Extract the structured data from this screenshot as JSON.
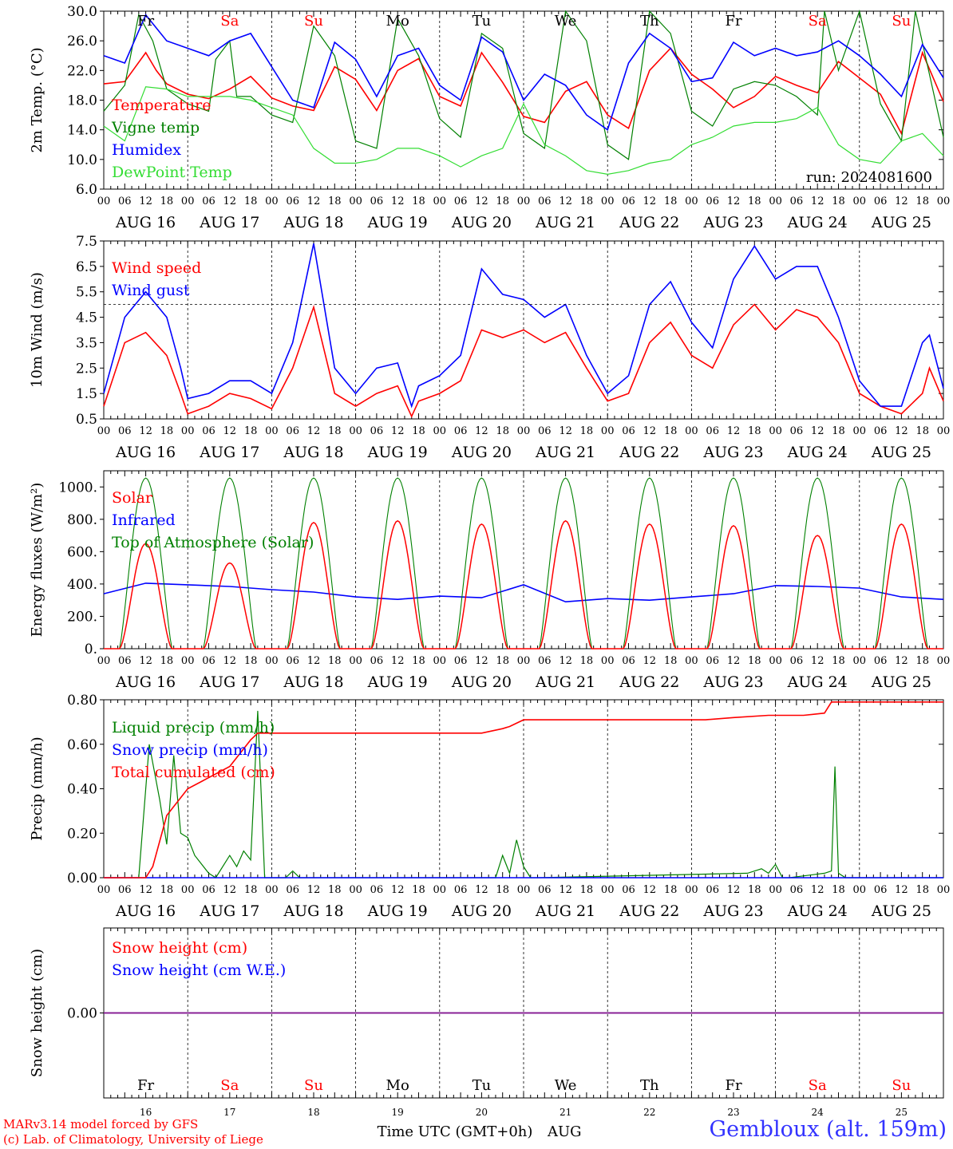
{
  "run_label": "run: 2024081600",
  "station": "Gembloux (alt. 159m)",
  "credits": [
    "MARv3.14 model forced by GFS",
    "(c) Lab. of Climatology, University of Liege"
  ],
  "time_axis_title": "Time UTC (GMT+0h)",
  "month_label": "AUG",
  "hour_ticks": [
    "00",
    "06",
    "12",
    "18"
  ],
  "dates": [
    "AUG 16",
    "AUG 17",
    "AUG 18",
    "AUG 19",
    "AUG 20",
    "AUG 21",
    "AUG 22",
    "AUG 23",
    "AUG 24",
    "AUG 25"
  ],
  "day_numbers": [
    "16",
    "17",
    "18",
    "19",
    "20",
    "21",
    "22",
    "23",
    "24",
    "25"
  ],
  "weekdays": [
    "Fr",
    "Sa",
    "Su",
    "Mo",
    "Tu",
    "We",
    "Th",
    "Fr",
    "Sa",
    "Su"
  ],
  "weekend_flags": [
    false,
    true,
    true,
    false,
    false,
    false,
    false,
    false,
    true,
    true
  ],
  "colors": {
    "red": "#ff0000",
    "green": "#008000",
    "blue": "#0000ff",
    "lightgreen": "#33dd33",
    "purple": "#8b1a8b"
  },
  "chart_data": [
    {
      "type": "line",
      "ylabel": "2m Temp. (°C)",
      "yticks": [
        "30.0",
        "26.0",
        "22.0",
        "18.0",
        "14.0",
        "10.0",
        "6.0"
      ],
      "ylim": [
        6,
        30
      ],
      "x_unit": "hours since AUG 16 00 UTC",
      "x_range": [
        0,
        240
      ],
      "series": [
        {
          "name": "Temperature",
          "color": "red",
          "x": [
            0,
            6,
            12,
            15,
            18,
            24,
            30,
            36,
            42,
            48,
            54,
            60,
            66,
            72,
            78,
            84,
            90,
            96,
            102,
            108,
            114,
            120,
            126,
            132,
            138,
            144,
            150,
            156,
            162,
            168,
            174,
            180,
            186,
            192,
            198,
            204,
            210,
            216,
            222,
            228,
            234,
            240
          ],
          "values": [
            20.2,
            20.5,
            24.4,
            22.0,
            20.2,
            18.8,
            18.2,
            19.5,
            21.2,
            18.3,
            17.2,
            16.6,
            22.5,
            20.8,
            16.6,
            22.0,
            23.6,
            18.5,
            17.2,
            24.4,
            20.4,
            15.8,
            15.0,
            19.2,
            20.5,
            16.0,
            14.2,
            22.0,
            25.0,
            21.5,
            19.5,
            17.0,
            18.5,
            21.2,
            20.0,
            19.0,
            23.2,
            21.0,
            18.8,
            13.5,
            24.4,
            17.8
          ]
        },
        {
          "name": "Vigne temp",
          "color": "green",
          "x": [
            0,
            6,
            10,
            14,
            18,
            24,
            30,
            32,
            36,
            38,
            42,
            48,
            54,
            60,
            66,
            72,
            78,
            84,
            90,
            96,
            102,
            108,
            114,
            120,
            126,
            132,
            138,
            144,
            150,
            156,
            162,
            168,
            174,
            180,
            186,
            192,
            198,
            204,
            206,
            210,
            216,
            222,
            228,
            232,
            240
          ],
          "values": [
            16.5,
            20.0,
            29.5,
            26.0,
            19.5,
            17.5,
            16.5,
            23.5,
            26.0,
            18.5,
            18.5,
            16.0,
            15.0,
            28.0,
            24.0,
            12.5,
            11.5,
            29.0,
            24.0,
            15.5,
            13.0,
            27.0,
            25.0,
            13.5,
            11.5,
            30.0,
            26.0,
            12.0,
            10.0,
            30.0,
            27.0,
            16.5,
            14.5,
            19.5,
            20.5,
            20.0,
            18.5,
            16.0,
            30.0,
            22.0,
            30.0,
            17.5,
            12.5,
            30.0,
            13.0
          ]
        },
        {
          "name": "Humidex",
          "color": "blue",
          "x": [
            0,
            6,
            12,
            18,
            24,
            30,
            36,
            42,
            48,
            54,
            60,
            66,
            72,
            78,
            84,
            90,
            96,
            102,
            108,
            114,
            120,
            126,
            132,
            138,
            144,
            150,
            156,
            162,
            168,
            174,
            180,
            186,
            192,
            198,
            204,
            210,
            216,
            222,
            228,
            234,
            240
          ],
          "values": [
            24.0,
            23.0,
            29.5,
            26.0,
            25.0,
            24.0,
            26.0,
            27.0,
            22.5,
            18.0,
            17.0,
            25.8,
            23.5,
            18.5,
            24.0,
            25.0,
            20.0,
            18.0,
            26.5,
            24.5,
            18.0,
            21.5,
            20.0,
            16.0,
            14.0,
            23.0,
            27.0,
            25.0,
            20.5,
            21.0,
            25.8,
            24.0,
            25.0,
            24.0,
            24.5,
            26.0,
            24.0,
            21.5,
            18.5,
            25.5,
            21.0
          ]
        },
        {
          "name": "DewPoint Temp",
          "color": "lightgreen",
          "x": [
            0,
            6,
            12,
            18,
            24,
            30,
            36,
            42,
            48,
            54,
            60,
            66,
            72,
            78,
            84,
            90,
            96,
            102,
            108,
            114,
            120,
            126,
            132,
            138,
            144,
            150,
            156,
            162,
            168,
            174,
            180,
            186,
            192,
            198,
            204,
            210,
            216,
            222,
            228,
            234,
            240
          ],
          "values": [
            14.5,
            12.5,
            19.8,
            19.5,
            18.5,
            18.5,
            18.5,
            18.0,
            17.0,
            16.0,
            11.5,
            9.5,
            9.5,
            10.0,
            11.5,
            11.5,
            10.5,
            9.0,
            10.5,
            11.5,
            17.5,
            12.0,
            10.5,
            8.5,
            8.0,
            8.5,
            9.5,
            10.0,
            12.0,
            13.0,
            14.5,
            15.0,
            15.0,
            15.5,
            17.0,
            12.0,
            10.0,
            9.5,
            12.5,
            13.5,
            10.5
          ]
        }
      ]
    },
    {
      "type": "line",
      "ylabel": "10m Wind (m/s)",
      "yticks": [
        "7.5",
        "6.5",
        "5.5",
        "4.5",
        "3.5",
        "2.5",
        "1.5",
        "0.5"
      ],
      "ylim": [
        0.5,
        7.5
      ],
      "reference_line": 5.0,
      "series": [
        {
          "name": "Wind speed",
          "color": "red",
          "x": [
            0,
            6,
            12,
            18,
            22,
            24,
            30,
            36,
            42,
            48,
            54,
            60,
            66,
            72,
            78,
            84,
            88,
            90,
            96,
            102,
            108,
            114,
            120,
            126,
            132,
            138,
            144,
            150,
            156,
            162,
            168,
            174,
            180,
            186,
            192,
            198,
            204,
            210,
            216,
            222,
            228,
            234,
            236,
            240
          ],
          "values": [
            1.0,
            3.5,
            3.9,
            3.0,
            1.5,
            0.7,
            1.0,
            1.5,
            1.3,
            0.9,
            2.5,
            4.9,
            1.5,
            1.0,
            1.5,
            1.8,
            0.6,
            1.2,
            1.5,
            2.0,
            4.0,
            3.7,
            4.0,
            3.5,
            3.9,
            2.5,
            1.2,
            1.5,
            3.5,
            4.3,
            3.0,
            2.5,
            4.2,
            5.0,
            4.0,
            4.8,
            4.5,
            3.5,
            1.5,
            1.0,
            0.7,
            1.5,
            2.5,
            1.2
          ]
        },
        {
          "name": "Wind gust",
          "color": "blue",
          "x": [
            0,
            6,
            12,
            18,
            22,
            24,
            30,
            36,
            42,
            48,
            54,
            60,
            66,
            72,
            78,
            84,
            88,
            90,
            96,
            102,
            108,
            114,
            120,
            126,
            132,
            138,
            144,
            150,
            156,
            162,
            168,
            174,
            180,
            186,
            192,
            198,
            204,
            210,
            216,
            222,
            228,
            234,
            236,
            240
          ],
          "values": [
            1.5,
            4.5,
            5.5,
            4.5,
            2.5,
            1.3,
            1.5,
            2.0,
            2.0,
            1.5,
            3.5,
            7.4,
            2.5,
            1.5,
            2.5,
            2.7,
            1.0,
            1.8,
            2.2,
            3.0,
            6.4,
            5.4,
            5.2,
            4.5,
            5.0,
            3.0,
            1.5,
            2.2,
            5.0,
            5.9,
            4.3,
            3.3,
            6.0,
            7.3,
            6.0,
            6.5,
            6.5,
            4.5,
            2.0,
            1.0,
            1.0,
            3.5,
            3.8,
            1.7
          ]
        }
      ]
    },
    {
      "type": "line",
      "ylabel": "Energy fluxes (W/m²)",
      "yticks": [
        "1000.",
        "800.",
        "600.",
        "400.",
        "200.",
        "0."
      ],
      "ylim": [
        0,
        1100
      ],
      "series": [
        {
          "name": "Solar",
          "color": "red",
          "peaks": [
            650,
            530,
            780,
            790,
            770,
            790,
            770,
            760,
            700,
            770
          ]
        },
        {
          "name": "Infrared",
          "color": "blue",
          "x": [
            0,
            12,
            24,
            36,
            48,
            60,
            72,
            84,
            96,
            108,
            120,
            132,
            144,
            156,
            168,
            180,
            192,
            204,
            216,
            228,
            240
          ],
          "values": [
            340,
            405,
            395,
            385,
            365,
            350,
            320,
            305,
            325,
            315,
            395,
            290,
            310,
            300,
            320,
            340,
            390,
            385,
            375,
            320,
            305
          ]
        },
        {
          "name": "Top of Atmosphere (Solar)",
          "color": "green",
          "peak": 1055,
          "sunrise_h": 4.5,
          "sunset_h": 19.5
        }
      ]
    },
    {
      "type": "line",
      "ylabel": "Precip (mm/h)",
      "yticks": [
        "0.80",
        "0.60",
        "0.40",
        "0.20",
        "0.00"
      ],
      "ylim": [
        0,
        0.8
      ],
      "series": [
        {
          "name": "Liquid precip (mm/h)",
          "color": "green",
          "x": [
            0,
            10,
            13,
            16,
            18,
            20,
            22,
            24,
            26,
            30,
            32,
            36,
            38,
            40,
            42,
            44,
            46,
            48,
            50,
            52,
            54,
            56,
            110,
            112,
            114,
            116,
            118,
            120,
            122,
            124,
            184,
            188,
            190,
            192,
            194,
            196,
            206,
            208,
            209,
            210,
            212,
            240
          ],
          "values": [
            0,
            0,
            0.6,
            0.35,
            0.15,
            0.55,
            0.2,
            0.18,
            0.1,
            0.02,
            0.0,
            0.1,
            0.05,
            0.12,
            0.08,
            0.75,
            0,
            0,
            0,
            0,
            0.03,
            0,
            0,
            0,
            0.1,
            0.02,
            0.17,
            0.05,
            0,
            0,
            0.02,
            0.04,
            0.02,
            0.06,
            0,
            0,
            0.02,
            0.03,
            0.5,
            0.02,
            0,
            0
          ]
        },
        {
          "name": "Snow precip (mm/h)",
          "color": "blue",
          "x": [
            0,
            240
          ],
          "values": [
            0,
            0
          ]
        },
        {
          "name": "Total cumulated (cm)",
          "color": "red",
          "x": [
            0,
            12,
            14,
            18,
            24,
            30,
            36,
            42,
            44,
            46,
            48,
            108,
            114,
            116,
            120,
            122,
            172,
            180,
            190,
            200,
            206,
            208,
            240
          ],
          "values": [
            0,
            0,
            0.05,
            0.28,
            0.4,
            0.45,
            0.5,
            0.62,
            0.65,
            0.65,
            0.65,
            0.65,
            0.67,
            0.68,
            0.71,
            0.71,
            0.71,
            0.72,
            0.73,
            0.73,
            0.74,
            0.79,
            0.79
          ]
        }
      ]
    },
    {
      "type": "line",
      "ylabel": "Snow height (cm)",
      "yticks": [
        "0.00"
      ],
      "series": [
        {
          "name": "Snow height (cm)",
          "color": "red",
          "x": [
            0,
            240
          ],
          "values": [
            0,
            0
          ]
        },
        {
          "name": "Snow height (cm W.E.)",
          "color": "blue",
          "x": [
            0,
            240
          ],
          "values": [
            0,
            0
          ]
        }
      ]
    }
  ]
}
